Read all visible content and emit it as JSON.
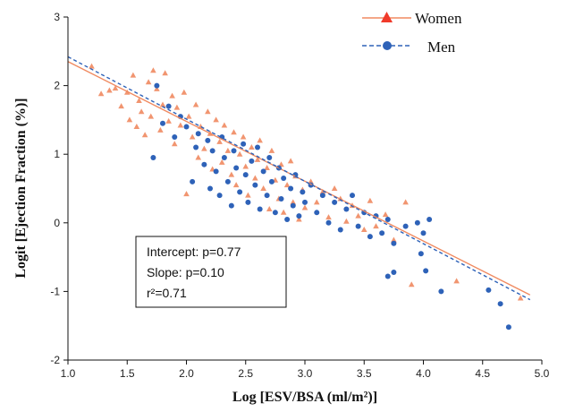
{
  "chart_data": {
    "type": "scatter",
    "xlabel": "Log [ESV/BSA (ml/m²)]",
    "ylabel": "Logit [Ejection Fraction (%)]",
    "xlim": [
      1.0,
      5.0
    ],
    "ylim": [
      -2,
      3
    ],
    "x_ticks": [
      "1.0",
      "1.5",
      "2.0",
      "2.5",
      "3.0",
      "3.5",
      "4.0",
      "4.5",
      "5.0"
    ],
    "y_ticks": [
      "-2",
      "-1",
      "0",
      "1",
      "2",
      "3"
    ],
    "grid": false,
    "legend_position": "top-right",
    "series": [
      {
        "name": "Women",
        "color": "#F08A60",
        "marker": "triangle",
        "line_style": "solid",
        "fit_line": {
          "x": [
            1.0,
            4.9
          ],
          "y": [
            2.35,
            -1.05
          ]
        },
        "points": [
          [
            1.2,
            2.28
          ],
          [
            1.28,
            1.88
          ],
          [
            1.35,
            1.93
          ],
          [
            1.4,
            1.96
          ],
          [
            1.45,
            1.7
          ],
          [
            1.5,
            1.9
          ],
          [
            1.52,
            1.5
          ],
          [
            1.55,
            2.15
          ],
          [
            1.58,
            1.4
          ],
          [
            1.6,
            1.78
          ],
          [
            1.62,
            1.62
          ],
          [
            1.65,
            1.28
          ],
          [
            1.68,
            2.05
          ],
          [
            1.7,
            1.55
          ],
          [
            1.72,
            2.22
          ],
          [
            1.75,
            1.95
          ],
          [
            1.78,
            1.35
          ],
          [
            1.8,
            1.72
          ],
          [
            1.82,
            2.18
          ],
          [
            1.85,
            1.48
          ],
          [
            1.88,
            1.85
          ],
          [
            1.9,
            1.15
          ],
          [
            1.92,
            1.68
          ],
          [
            1.95,
            1.42
          ],
          [
            1.98,
            1.9
          ],
          [
            2.0,
            0.42
          ],
          [
            2.02,
            1.55
          ],
          [
            2.05,
            1.25
          ],
          [
            2.08,
            1.72
          ],
          [
            2.1,
            0.95
          ],
          [
            2.12,
            1.4
          ],
          [
            2.15,
            1.08
          ],
          [
            2.18,
            1.62
          ],
          [
            2.2,
            1.3
          ],
          [
            2.22,
            0.78
          ],
          [
            2.25,
            1.5
          ],
          [
            2.28,
            1.18
          ],
          [
            2.3,
            0.88
          ],
          [
            2.32,
            1.42
          ],
          [
            2.35,
            1.05
          ],
          [
            2.38,
            0.7
          ],
          [
            2.4,
            1.32
          ],
          [
            2.42,
            0.55
          ],
          [
            2.45,
            1.0
          ],
          [
            2.48,
            1.25
          ],
          [
            2.5,
            0.82
          ],
          [
            2.52,
            0.4
          ],
          [
            2.55,
            1.1
          ],
          [
            2.58,
            0.65
          ],
          [
            2.6,
            0.92
          ],
          [
            2.62,
            1.2
          ],
          [
            2.65,
            0.5
          ],
          [
            2.68,
            0.8
          ],
          [
            2.7,
            0.2
          ],
          [
            2.72,
            1.05
          ],
          [
            2.75,
            0.62
          ],
          [
            2.78,
            0.35
          ],
          [
            2.8,
            0.85
          ],
          [
            2.82,
            0.15
          ],
          [
            2.85,
            0.55
          ],
          [
            2.88,
            0.9
          ],
          [
            2.9,
            0.3
          ],
          [
            2.92,
            0.68
          ],
          [
            2.95,
            0.05
          ],
          [
            2.98,
            0.48
          ],
          [
            3.0,
            0.22
          ],
          [
            3.05,
            0.6
          ],
          [
            3.1,
            0.3
          ],
          [
            3.15,
            0.45
          ],
          [
            3.2,
            0.08
          ],
          [
            3.25,
            0.5
          ],
          [
            3.3,
            0.35
          ],
          [
            3.35,
            0.02
          ],
          [
            3.4,
            0.25
          ],
          [
            3.45,
            0.1
          ],
          [
            3.5,
            -0.1
          ],
          [
            3.55,
            0.32
          ],
          [
            3.6,
            -0.05
          ],
          [
            3.68,
            0.12
          ],
          [
            3.75,
            -0.25
          ],
          [
            3.85,
            0.3
          ],
          [
            3.9,
            -0.9
          ],
          [
            4.28,
            -0.85
          ],
          [
            4.82,
            -1.1
          ]
        ]
      },
      {
        "name": "Men",
        "color": "#2E62B8",
        "marker": "circle",
        "line_style": "dashed",
        "fit_line": {
          "x": [
            1.0,
            4.9
          ],
          "y": [
            2.42,
            -1.12
          ]
        },
        "points": [
          [
            1.72,
            0.95
          ],
          [
            1.75,
            2.0
          ],
          [
            1.8,
            1.45
          ],
          [
            1.85,
            1.7
          ],
          [
            1.9,
            1.25
          ],
          [
            1.95,
            1.55
          ],
          [
            2.0,
            1.4
          ],
          [
            2.05,
            0.6
          ],
          [
            2.08,
            1.1
          ],
          [
            2.1,
            1.3
          ],
          [
            2.15,
            0.85
          ],
          [
            2.18,
            1.2
          ],
          [
            2.2,
            0.5
          ],
          [
            2.22,
            1.05
          ],
          [
            2.25,
            0.75
          ],
          [
            2.28,
            0.4
          ],
          [
            2.3,
            1.25
          ],
          [
            2.32,
            0.95
          ],
          [
            2.35,
            0.6
          ],
          [
            2.38,
            0.25
          ],
          [
            2.4,
            1.05
          ],
          [
            2.42,
            0.8
          ],
          [
            2.45,
            0.45
          ],
          [
            2.48,
            1.15
          ],
          [
            2.5,
            0.7
          ],
          [
            2.52,
            0.3
          ],
          [
            2.55,
            0.9
          ],
          [
            2.58,
            0.55
          ],
          [
            2.6,
            1.1
          ],
          [
            2.62,
            0.2
          ],
          [
            2.65,
            0.75
          ],
          [
            2.68,
            0.4
          ],
          [
            2.7,
            0.95
          ],
          [
            2.72,
            0.6
          ],
          [
            2.75,
            0.15
          ],
          [
            2.78,
            0.8
          ],
          [
            2.8,
            0.35
          ],
          [
            2.82,
            0.65
          ],
          [
            2.85,
            0.05
          ],
          [
            2.88,
            0.5
          ],
          [
            2.9,
            0.25
          ],
          [
            2.92,
            0.7
          ],
          [
            2.95,
            0.1
          ],
          [
            2.98,
            0.45
          ],
          [
            3.0,
            0.3
          ],
          [
            3.05,
            0.55
          ],
          [
            3.1,
            0.15
          ],
          [
            3.15,
            0.4
          ],
          [
            3.2,
            0.0
          ],
          [
            3.25,
            0.3
          ],
          [
            3.3,
            -0.1
          ],
          [
            3.35,
            0.2
          ],
          [
            3.4,
            0.4
          ],
          [
            3.45,
            -0.05
          ],
          [
            3.5,
            0.15
          ],
          [
            3.55,
            -0.2
          ],
          [
            3.6,
            0.1
          ],
          [
            3.65,
            -0.15
          ],
          [
            3.7,
            0.05
          ],
          [
            3.75,
            -0.3
          ],
          [
            3.7,
            -0.78
          ],
          [
            3.75,
            -0.72
          ],
          [
            3.85,
            -0.05
          ],
          [
            3.95,
            0.0
          ],
          [
            4.0,
            -0.15
          ],
          [
            4.05,
            0.05
          ],
          [
            3.98,
            -0.45
          ],
          [
            4.02,
            -0.7
          ],
          [
            4.15,
            -1.0
          ],
          [
            4.55,
            -0.98
          ],
          [
            4.65,
            -1.18
          ],
          [
            4.72,
            -1.52
          ]
        ]
      }
    ],
    "annotations": [
      "Intercept: p=0.77",
      "Slope: p=0.10",
      "r²=0.71"
    ]
  }
}
